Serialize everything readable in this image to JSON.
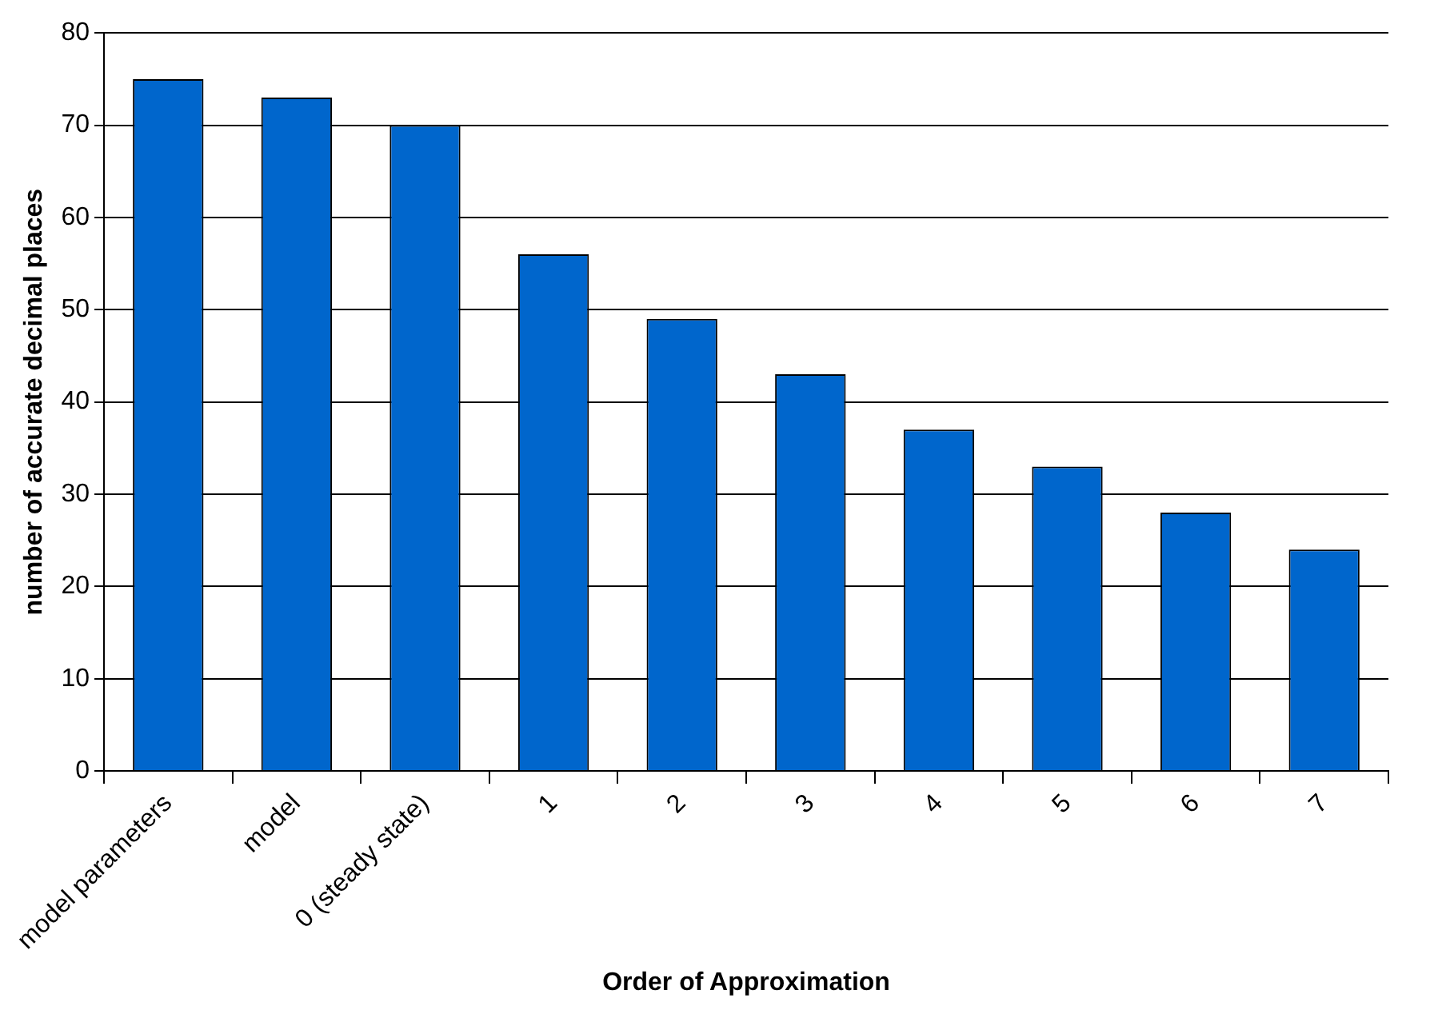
{
  "chart_data": {
    "type": "bar",
    "xlabel": "Order of Approximation",
    "ylabel": "number of accurate decimal places",
    "categories": [
      "model parameters",
      "model",
      "0 (steady state)",
      "1",
      "2",
      "3",
      "4",
      "5",
      "6",
      "7"
    ],
    "values": [
      75,
      73,
      70,
      56,
      49,
      43,
      37,
      33,
      28,
      24
    ],
    "color": "#0066cc",
    "ylim": [
      0,
      80
    ],
    "yticks": [
      0,
      10,
      20,
      30,
      40,
      50,
      60,
      70,
      80
    ],
    "grid": "y",
    "legend": false
  }
}
